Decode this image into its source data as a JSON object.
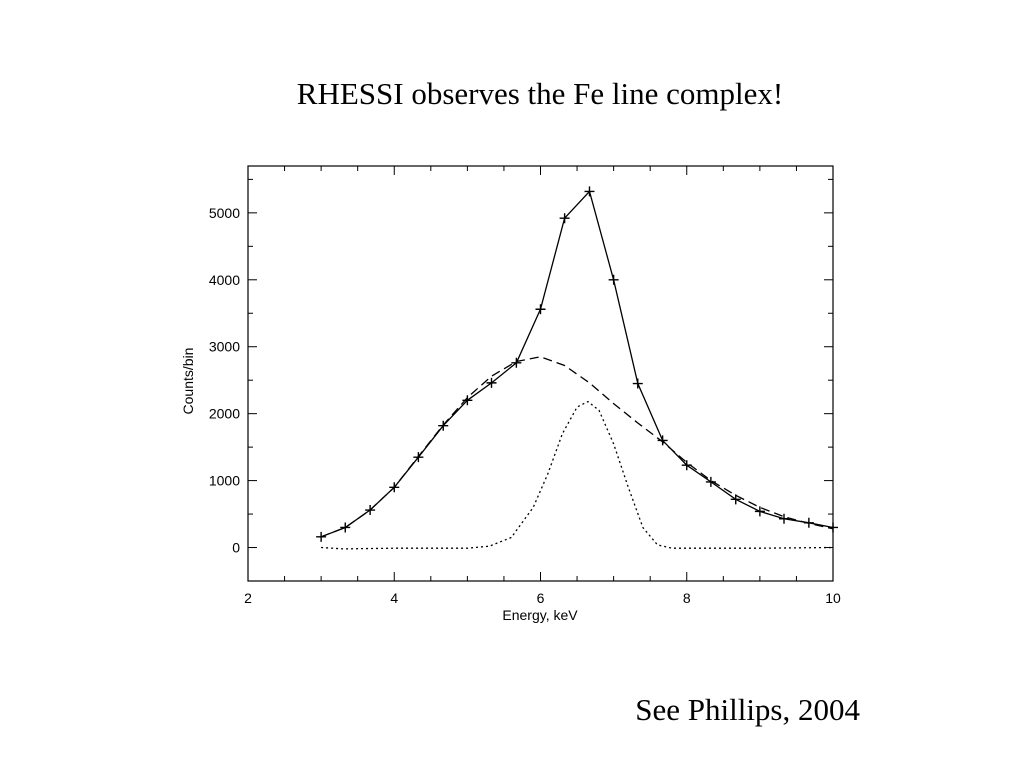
{
  "slide": {
    "title": "RHESSI observes the Fe line complex!",
    "citation": "See Phillips, 2004"
  },
  "chart_data": {
    "type": "line",
    "title": "",
    "xlabel": "Energy, keV",
    "ylabel": "Counts/bin",
    "xlim": [
      2,
      10
    ],
    "ylim": [
      -500,
      5700
    ],
    "xticks": [
      2,
      4,
      6,
      8,
      10
    ],
    "yticks": [
      0,
      1000,
      2000,
      3000,
      4000,
      5000
    ],
    "grid": false,
    "legend": "none",
    "series": [
      {
        "style": "solid-with-plus-markers",
        "color": "#000000",
        "x": [
          3.0,
          3.33,
          3.67,
          4.0,
          4.33,
          4.67,
          5.0,
          5.33,
          5.67,
          6.0,
          6.33,
          6.67,
          7.0,
          7.33,
          7.67,
          8.0,
          8.33,
          8.67,
          9.0,
          9.33,
          9.67,
          10.0
        ],
        "y": [
          160,
          300,
          560,
          900,
          1350,
          1820,
          2200,
          2460,
          2760,
          3560,
          4920,
          5320,
          4000,
          2450,
          1600,
          1230,
          980,
          720,
          540,
          430,
          370,
          300
        ]
      },
      {
        "style": "dashed",
        "color": "#000000",
        "x": [
          3.0,
          3.33,
          3.67,
          4.0,
          4.33,
          4.67,
          5.0,
          5.33,
          5.67,
          6.0,
          6.33,
          6.67,
          7.0,
          7.33,
          7.67,
          8.0,
          8.33,
          8.67,
          9.0,
          9.33,
          9.67,
          10.0
        ],
        "y": [
          160,
          300,
          560,
          900,
          1360,
          1830,
          2240,
          2560,
          2780,
          2850,
          2720,
          2460,
          2150,
          1860,
          1580,
          1270,
          1000,
          780,
          600,
          460,
          360,
          280
        ]
      },
      {
        "style": "dotted",
        "color": "#000000",
        "x": [
          3.0,
          3.3,
          4.0,
          5.0,
          5.3,
          5.6,
          5.9,
          6.1,
          6.3,
          6.5,
          6.65,
          6.8,
          7.0,
          7.2,
          7.4,
          7.6,
          7.8,
          8.0,
          9.0,
          10.0
        ],
        "y": [
          0,
          -20,
          -10,
          -10,
          20,
          150,
          600,
          1100,
          1700,
          2100,
          2180,
          2050,
          1550,
          900,
          300,
          40,
          -10,
          -10,
          -10,
          0
        ]
      }
    ]
  }
}
